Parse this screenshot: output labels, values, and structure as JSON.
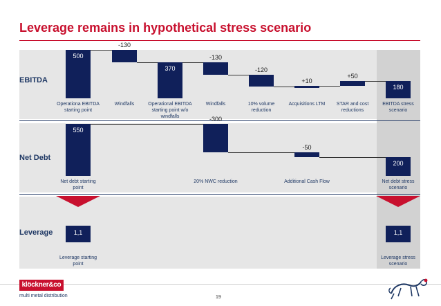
{
  "header": {
    "title": "Leverage remains in hypothetical stress scenario"
  },
  "rows": {
    "ebitda": "EBITDA",
    "net_debt": "Net Debt",
    "leverage": "Leverage"
  },
  "footer": {
    "page_number": "19",
    "logo": "klöckner&co",
    "logo_tagline": "multi metal distribution"
  },
  "icons": {
    "mascot": "dog-mascot-icon",
    "arrows": "arrow-down-icon"
  },
  "colors": {
    "accent": "#c8102e",
    "bar": "#10205a",
    "highlight_column": "#d2d2d2",
    "band": "#e6e6e6"
  },
  "chart_data": [
    {
      "type": "bar",
      "subtype": "waterfall",
      "row": "EBITDA",
      "categories": [
        "Operationa EBITDA starting point",
        "Windfalls",
        "Operational EBITDA starting point w/o windfalls",
        "Windfalls",
        "10% volume reduction",
        "Acquisitions LTM",
        "STAR and cost reductions",
        "EBITDA stress scenario"
      ],
      "values": [
        500,
        -130,
        370,
        -130,
        -120,
        10,
        50,
        180
      ],
      "labels": [
        "500",
        "-130",
        "370",
        "-130",
        "-120",
        "+10",
        "+50",
        "180"
      ],
      "kind": [
        "total",
        "delta",
        "total",
        "delta",
        "delta",
        "delta",
        "delta",
        "total"
      ]
    },
    {
      "type": "bar",
      "subtype": "waterfall",
      "row": "Net Debt",
      "categories": [
        "Net debt starting point",
        "",
        "",
        "20% NWC reduction",
        "",
        "Additional Cash Flow",
        "",
        "Net debt stress scenario"
      ],
      "values": [
        550,
        null,
        null,
        -300,
        null,
        -50,
        null,
        200
      ],
      "labels": [
        "550",
        "",
        "",
        "-300",
        "",
        "-50",
        "",
        "200"
      ],
      "kind": [
        "total",
        "none",
        "none",
        "delta",
        "none",
        "delta",
        "none",
        "total"
      ]
    },
    {
      "type": "table",
      "row": "Leverage",
      "categories": [
        "Leverage starting point",
        "Leverage stress scenario"
      ],
      "values": [
        1.1,
        1.1
      ],
      "labels": [
        "1,1",
        "1,1"
      ]
    }
  ]
}
